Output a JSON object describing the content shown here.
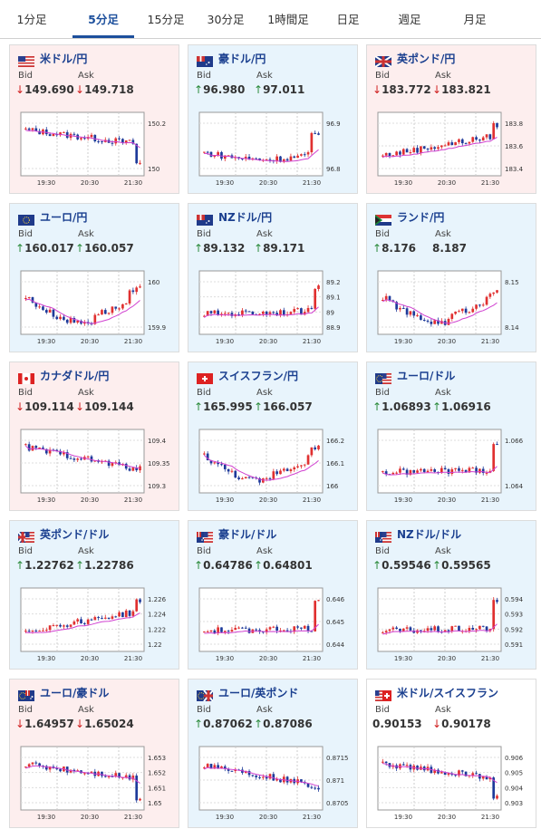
{
  "tabs": [
    {
      "label": "1分足",
      "active": false
    },
    {
      "label": "5分足",
      "active": true
    },
    {
      "label": "15分足",
      "active": false
    },
    {
      "label": "30分足",
      "active": false
    },
    {
      "label": "1時間足",
      "active": false
    },
    {
      "label": "日足",
      "active": false
    },
    {
      "label": "週足",
      "active": false
    },
    {
      "label": "月足",
      "active": false
    }
  ],
  "labels": {
    "bid": "Bid",
    "ask": "Ask"
  },
  "colors": {
    "up_arrow": "#2a8a3a",
    "down_arrow": "#d02020",
    "candle_up": "#e03030",
    "candle_down": "#1e3a9a",
    "ma_line": "#d040d0",
    "ma_line2": "#40a0a0",
    "card_down_bg": "#fdeeee",
    "card_up_bg": "#e8f4fc",
    "pair_text": "#1a3f8f"
  },
  "cards": [
    {
      "pair": "米ドル/円",
      "flag": "us-flag",
      "trend": "down",
      "bid": "149.690",
      "bid_dir": "down",
      "ask": "149.718",
      "ask_dir": "down",
      "chart": {
        "x_ticks": [
          "19:30",
          "20:30",
          "21:30"
        ],
        "y_ticks": [
          "150.2",
          "150"
        ],
        "y_range": [
          149.7,
          150.4
        ],
        "pattern": "downspike"
      }
    },
    {
      "pair": "豪ドル/円",
      "flag": "au-flag",
      "trend": "up",
      "bid": "96.980",
      "bid_dir": "up",
      "ask": "97.011",
      "ask_dir": "up",
      "chart": {
        "x_ticks": [
          "19:30",
          "20:30",
          "21:30"
        ],
        "y_ticks": [
          "96.9",
          "96.8"
        ],
        "y_range": [
          96.7,
          97.0
        ],
        "pattern": "upspike"
      }
    },
    {
      "pair": "英ポンド/円",
      "flag": "uk-flag",
      "trend": "down",
      "bid": "183.772",
      "bid_dir": "down",
      "ask": "183.821",
      "ask_dir": "down",
      "chart": {
        "x_ticks": [
          "19:30",
          "20:30",
          "21:30"
        ],
        "y_ticks": [
          "183.8",
          "183.6",
          "183.4"
        ],
        "y_range": [
          183.35,
          183.95
        ],
        "pattern": "rise"
      }
    },
    {
      "pair": "ユーロ/円",
      "flag": "eu-flag",
      "trend": "up",
      "bid": "160.017",
      "bid_dir": "up",
      "ask": "160.057",
      "ask_dir": "up",
      "chart": {
        "x_ticks": [
          "19:30",
          "20:30",
          "21:30"
        ],
        "y_ticks": [
          "160",
          "159.9"
        ],
        "y_range": [
          159.8,
          160.1
        ],
        "pattern": "dipup"
      }
    },
    {
      "pair": "NZドル/円",
      "flag": "nz-flag",
      "trend": "up",
      "bid": "89.132",
      "bid_dir": "up",
      "ask": "89.171",
      "ask_dir": "up",
      "chart": {
        "x_ticks": [
          "19:30",
          "20:30",
          "21:30"
        ],
        "y_ticks": [
          "89.2",
          "89.1",
          "89",
          "88.9"
        ],
        "y_range": [
          88.85,
          89.25
        ],
        "pattern": "flatspike"
      }
    },
    {
      "pair": "ランド/円",
      "flag": "za-flag",
      "trend": "up",
      "bid": "8.176",
      "bid_dir": "up",
      "ask": "8.187",
      "ask_dir": "none",
      "chart": {
        "x_ticks": [
          "19:30",
          "20:30",
          "21:30"
        ],
        "y_ticks": [
          "8.15",
          "8.14"
        ],
        "y_range": [
          8.135,
          8.165
        ],
        "pattern": "dipup"
      }
    },
    {
      "pair": "カナダドル/円",
      "flag": "ca-flag",
      "trend": "down",
      "bid": "109.114",
      "bid_dir": "down",
      "ask": "109.144",
      "ask_dir": "down",
      "chart": {
        "x_ticks": [
          "19:30",
          "20:30",
          "21:30"
        ],
        "y_ticks": [
          "109.4",
          "109.35",
          "109.3"
        ],
        "y_range": [
          109.25,
          109.45
        ],
        "pattern": "fall"
      }
    },
    {
      "pair": "スイスフラン/円",
      "flag": "ch-flag",
      "trend": "up",
      "bid": "165.995",
      "bid_dir": "up",
      "ask": "166.057",
      "ask_dir": "up",
      "chart": {
        "x_ticks": [
          "19:30",
          "20:30",
          "21:30"
        ],
        "y_ticks": [
          "166.2",
          "166.1",
          "166"
        ],
        "y_range": [
          165.9,
          166.25
        ],
        "pattern": "dipup"
      }
    },
    {
      "pair": "ユーロ/ドル",
      "flag": "eu-us-flag",
      "trend": "up",
      "bid": "1.06893",
      "bid_dir": "up",
      "ask": "1.06916",
      "ask_dir": "up",
      "chart": {
        "x_ticks": [
          "19:30",
          "20:30",
          "21:30"
        ],
        "y_ticks": [
          "1.066",
          "1.064"
        ],
        "y_range": [
          1.063,
          1.069
        ],
        "pattern": "flatspike"
      }
    },
    {
      "pair": "英ポンド/ドル",
      "flag": "uk-us-flag",
      "trend": "up",
      "bid": "1.22762",
      "bid_dir": "up",
      "ask": "1.22786",
      "ask_dir": "up",
      "chart": {
        "x_ticks": [
          "19:30",
          "20:30",
          "21:30"
        ],
        "y_ticks": [
          "1.226",
          "1.224",
          "1.222",
          "1.22"
        ],
        "y_range": [
          1.219,
          1.2275
        ],
        "pattern": "rise"
      }
    },
    {
      "pair": "豪ドル/ドル",
      "flag": "au-us-flag",
      "trend": "up",
      "bid": "0.64786",
      "bid_dir": "up",
      "ask": "0.64801",
      "ask_dir": "up",
      "chart": {
        "x_ticks": [
          "19:30",
          "20:30",
          "21:30"
        ],
        "y_ticks": [
          "0.646",
          "0.645",
          "0.644"
        ],
        "y_range": [
          0.6435,
          0.6485
        ],
        "pattern": "flatspike"
      }
    },
    {
      "pair": "NZドル/ドル",
      "flag": "nz-us-flag",
      "trend": "up",
      "bid": "0.59546",
      "bid_dir": "up",
      "ask": "0.59565",
      "ask_dir": "up",
      "chart": {
        "x_ticks": [
          "19:30",
          "20:30",
          "21:30"
        ],
        "y_ticks": [
          "0.594",
          "0.593",
          "0.592",
          "0.591"
        ],
        "y_range": [
          0.5905,
          0.5955
        ],
        "pattern": "flatspike"
      }
    },
    {
      "pair": "ユーロ/豪ドル",
      "flag": "eu-au-flag",
      "trend": "down",
      "bid": "1.64957",
      "bid_dir": "down",
      "ask": "1.65024",
      "ask_dir": "down",
      "chart": {
        "x_ticks": [
          "19:30",
          "20:30",
          "21:30"
        ],
        "y_ticks": [
          "1.653",
          "1.652",
          "1.651",
          "1.65"
        ],
        "y_range": [
          1.6495,
          1.6535
        ],
        "pattern": "downspike"
      }
    },
    {
      "pair": "ユーロ/英ポンド",
      "flag": "eu-uk-flag",
      "trend": "up",
      "bid": "0.87062",
      "bid_dir": "up",
      "ask": "0.87086",
      "ask_dir": "up",
      "chart": {
        "x_ticks": [
          "19:30",
          "20:30",
          "21:30"
        ],
        "y_ticks": [
          "0.8715",
          "0.871",
          "0.8705"
        ],
        "y_range": [
          0.8703,
          0.872
        ],
        "pattern": "fall"
      }
    },
    {
      "pair": "米ドル/スイスフラン",
      "flag": "us-ch-flag",
      "trend": "neutral",
      "bid": "0.90153",
      "bid_dir": "none",
      "ask": "0.90178",
      "ask_dir": "down",
      "chart": {
        "x_ticks": [
          "19:30",
          "20:30",
          "21:30"
        ],
        "y_ticks": [
          "0.906",
          "0.905",
          "0.904",
          "0.903"
        ],
        "y_range": [
          0.9025,
          0.9065
        ],
        "pattern": "downspike"
      }
    }
  ]
}
